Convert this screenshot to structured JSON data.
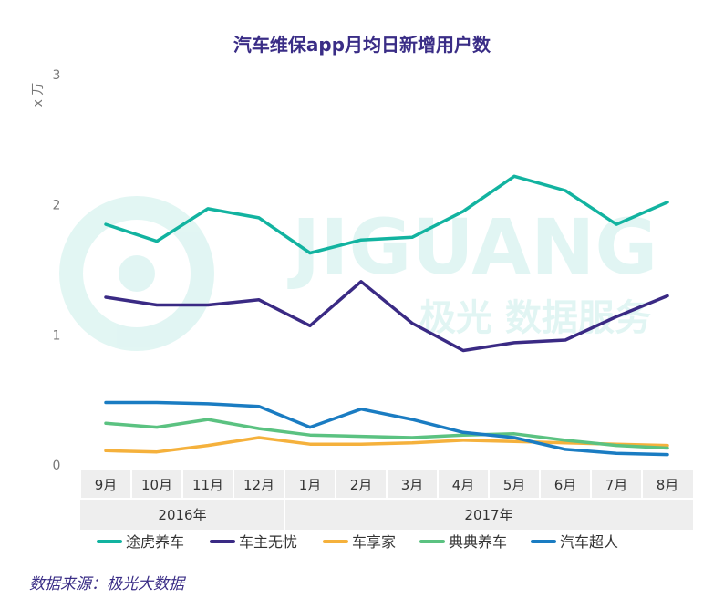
{
  "chart_data": {
    "type": "line",
    "title": "汽车维保app月均日新增用户数",
    "ylabel": "x 万",
    "ylim": [
      0,
      3
    ],
    "yticks": [
      0,
      1,
      2,
      3
    ],
    "categories": [
      "9月",
      "10月",
      "11月",
      "12月",
      "1月",
      "2月",
      "3月",
      "4月",
      "5月",
      "6月",
      "7月",
      "8月"
    ],
    "year_groups": [
      {
        "label": "2016年",
        "span": 4
      },
      {
        "label": "2017年",
        "span": 8
      }
    ],
    "grid": false,
    "legend_position": "bottom",
    "series": [
      {
        "name": "途虎养车",
        "color": "#12b3a0",
        "values": [
          1.85,
          1.72,
          1.97,
          1.9,
          1.63,
          1.73,
          1.75,
          1.95,
          2.22,
          2.11,
          1.85,
          2.02
        ]
      },
      {
        "name": "车主无忧",
        "color": "#3a2a84",
        "values": [
          1.29,
          1.23,
          1.23,
          1.27,
          1.07,
          1.41,
          1.09,
          0.88,
          0.94,
          0.96,
          1.14,
          1.3
        ]
      },
      {
        "name": "车享家",
        "color": "#f5b13c",
        "values": [
          0.11,
          0.1,
          0.15,
          0.21,
          0.16,
          0.16,
          0.17,
          0.19,
          0.18,
          0.17,
          0.16,
          0.15
        ]
      },
      {
        "name": "典典养车",
        "color": "#5bc281",
        "values": [
          0.32,
          0.29,
          0.35,
          0.28,
          0.23,
          0.22,
          0.21,
          0.23,
          0.24,
          0.19,
          0.15,
          0.13
        ]
      },
      {
        "name": "汽车超人",
        "color": "#1a7cc2",
        "values": [
          0.48,
          0.48,
          0.47,
          0.45,
          0.29,
          0.43,
          0.35,
          0.25,
          0.21,
          0.12,
          0.09,
          0.08
        ]
      }
    ]
  },
  "watermark": {
    "brand": "JIGUANG",
    "tagline": "极光 数据服务"
  },
  "source": "数据来源：极光大数据",
  "colors": {
    "title": "#3a2d86",
    "axis_band": "#eeeeee"
  }
}
